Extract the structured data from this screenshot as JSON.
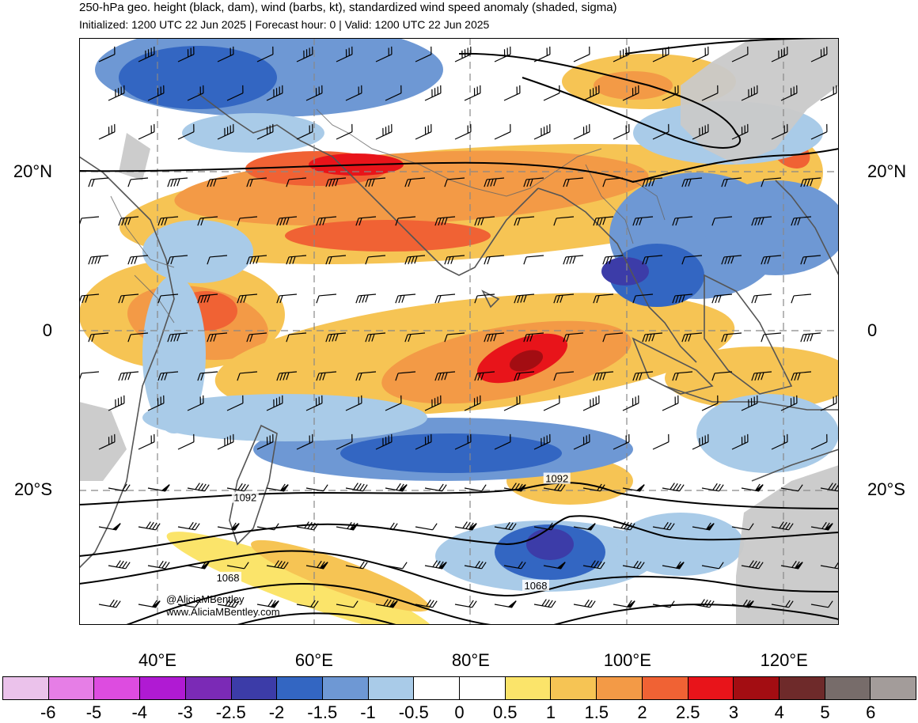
{
  "header": {
    "title": "250-hPa geo. height (black, dam), wind (barbs, kt), standardized wind speed anomaly (shaded, sigma)",
    "subtitle": "Initialized: 1200 UTC 22 Jun 2025 | Forecast hour: 0 | Valid: 1200 UTC 22 Jun 2025"
  },
  "map": {
    "lat_labels": [
      {
        "text": "20°N",
        "lat": 20
      },
      {
        "text": "0",
        "lat": 0
      },
      {
        "text": "20°S",
        "lat": -20
      }
    ],
    "lon_labels": [
      {
        "text": "40°E",
        "lon": 40
      },
      {
        "text": "60°E",
        "lon": 60
      },
      {
        "text": "80°E",
        "lon": 80
      },
      {
        "text": "100°E",
        "lon": 100
      },
      {
        "text": "120°E",
        "lon": 120
      }
    ],
    "extent": {
      "lon_min": 30,
      "lon_max": 127,
      "lat_min": -37,
      "lat_max": 37
    },
    "contour_labels": [
      {
        "text": "1092",
        "lon": 51.2,
        "lat": -21.2
      },
      {
        "text": "1092",
        "lon": 91.0,
        "lat": -18.8
      },
      {
        "text": "1068",
        "lon": 49.0,
        "lat": -31.3
      },
      {
        "text": "1068",
        "lon": 88.3,
        "lat": -32.3
      }
    ],
    "credits": [
      "@AliciaMBentley",
      "www.AliciaMBentley.com"
    ]
  },
  "colorbar": {
    "colors": [
      "#ebc2eb",
      "#e67ee6",
      "#dd4ce0",
      "#b01ad3",
      "#7b2ab6",
      "#3c3ca8",
      "#3366c2",
      "#6e98d4",
      "#a9cbe8",
      "#ffffff",
      "#ffffff",
      "#fbe46a",
      "#f6c454",
      "#f39a46",
      "#f06234",
      "#e8141a",
      "#a30d12",
      "#6e2a2a",
      "#776c6a",
      "#a39c9a"
    ],
    "labels": [
      "-6",
      "-5",
      "-4",
      "-3",
      "-2.5",
      "-2",
      "-1.5",
      "-1",
      "-0.5",
      "0",
      "0.5",
      "1",
      "1.5",
      "2",
      "2.5",
      "3",
      "4",
      "5",
      "6"
    ]
  }
}
